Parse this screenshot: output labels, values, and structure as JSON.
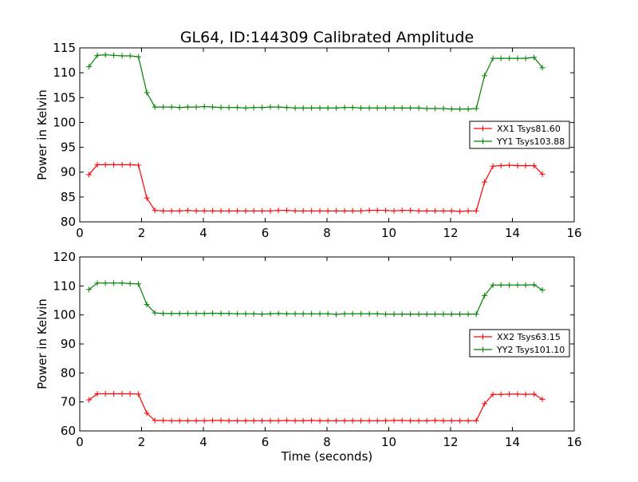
{
  "colors": {
    "xx": "#ff0000",
    "yy": "#008000",
    "frame": "#000000",
    "background": "#ffffff"
  },
  "chart_data": [
    {
      "type": "line",
      "title": "GL64, ID:144309 Calibrated Amplitude",
      "xlabel": "",
      "ylabel": "Power in Kelvin",
      "xlim": [
        0,
        16
      ],
      "ylim": [
        80,
        115
      ],
      "xticks": [
        0,
        2,
        4,
        6,
        8,
        10,
        12,
        14,
        16
      ],
      "yticks": [
        80,
        85,
        90,
        95,
        100,
        105,
        110,
        115
      ],
      "legend_position": "right",
      "x": [
        0.3,
        0.57,
        0.83,
        1.1,
        1.37,
        1.63,
        1.9,
        2.17,
        2.43,
        2.7,
        2.97,
        3.23,
        3.5,
        3.77,
        4.03,
        4.3,
        4.57,
        4.83,
        5.1,
        5.37,
        5.63,
        5.9,
        6.17,
        6.43,
        6.7,
        6.97,
        7.23,
        7.5,
        7.77,
        8.03,
        8.3,
        8.57,
        8.83,
        9.1,
        9.37,
        9.63,
        9.9,
        10.17,
        10.43,
        10.7,
        10.97,
        11.23,
        11.5,
        11.77,
        12.03,
        12.3,
        12.57,
        12.83,
        13.1,
        13.37,
        13.63,
        13.9,
        14.17,
        14.43,
        14.7,
        14.97
      ],
      "series": [
        {
          "name": "XX1 Tsys81.60",
          "color_key": "xx",
          "values": [
            89.5,
            91.5,
            91.5,
            91.5,
            91.5,
            91.5,
            91.4,
            84.8,
            82.3,
            82.2,
            82.2,
            82.2,
            82.3,
            82.2,
            82.2,
            82.2,
            82.2,
            82.2,
            82.2,
            82.2,
            82.2,
            82.2,
            82.2,
            82.3,
            82.3,
            82.2,
            82.2,
            82.2,
            82.2,
            82.2,
            82.2,
            82.2,
            82.2,
            82.2,
            82.3,
            82.3,
            82.3,
            82.2,
            82.3,
            82.3,
            82.2,
            82.2,
            82.2,
            82.2,
            82.2,
            82.1,
            82.2,
            82.2,
            88.0,
            91.2,
            91.3,
            91.4,
            91.3,
            91.3,
            91.3,
            89.6
          ]
        },
        {
          "name": "YY1 Tsys103.88",
          "color_key": "yy",
          "values": [
            111.2,
            113.5,
            113.6,
            113.5,
            113.4,
            113.4,
            113.2,
            106.0,
            103.1,
            103.1,
            103.1,
            103.0,
            103.1,
            103.1,
            103.2,
            103.1,
            103.0,
            103.0,
            103.0,
            102.9,
            103.0,
            103.0,
            103.1,
            103.1,
            103.0,
            102.9,
            102.9,
            102.9,
            102.9,
            102.9,
            102.9,
            103.0,
            103.0,
            102.9,
            102.9,
            102.9,
            102.9,
            102.9,
            102.9,
            102.9,
            102.9,
            102.8,
            102.8,
            102.8,
            102.7,
            102.7,
            102.7,
            102.8,
            109.4,
            112.9,
            112.9,
            112.9,
            112.9,
            112.9,
            113.1,
            111.0
          ]
        }
      ]
    },
    {
      "type": "line",
      "title": "",
      "xlabel": "Time (seconds)",
      "ylabel": "Power in Kelvin",
      "xlim": [
        0,
        16
      ],
      "ylim": [
        60,
        120
      ],
      "xticks": [
        0,
        2,
        4,
        6,
        8,
        10,
        12,
        14,
        16
      ],
      "yticks": [
        60,
        70,
        80,
        90,
        100,
        110,
        120
      ],
      "legend_position": "right",
      "x": [
        0.3,
        0.57,
        0.83,
        1.1,
        1.37,
        1.63,
        1.9,
        2.17,
        2.43,
        2.7,
        2.97,
        3.23,
        3.5,
        3.77,
        4.03,
        4.3,
        4.57,
        4.83,
        5.1,
        5.37,
        5.63,
        5.9,
        6.17,
        6.43,
        6.7,
        6.97,
        7.23,
        7.5,
        7.77,
        8.03,
        8.3,
        8.57,
        8.83,
        9.1,
        9.37,
        9.63,
        9.9,
        10.17,
        10.43,
        10.7,
        10.97,
        11.23,
        11.5,
        11.77,
        12.03,
        12.3,
        12.57,
        12.83,
        13.1,
        13.37,
        13.63,
        13.9,
        14.17,
        14.43,
        14.7,
        14.97
      ],
      "series": [
        {
          "name": "XX2 Tsys63.15",
          "color_key": "xx",
          "values": [
            70.7,
            72.8,
            72.8,
            72.8,
            72.8,
            72.8,
            72.7,
            66.1,
            63.6,
            63.6,
            63.5,
            63.5,
            63.5,
            63.5,
            63.5,
            63.6,
            63.6,
            63.5,
            63.5,
            63.5,
            63.5,
            63.5,
            63.5,
            63.5,
            63.6,
            63.5,
            63.5,
            63.6,
            63.5,
            63.5,
            63.5,
            63.5,
            63.5,
            63.5,
            63.5,
            63.5,
            63.5,
            63.6,
            63.6,
            63.5,
            63.5,
            63.5,
            63.6,
            63.5,
            63.5,
            63.5,
            63.5,
            63.5,
            69.4,
            72.6,
            72.6,
            72.7,
            72.7,
            72.6,
            72.7,
            70.9
          ]
        },
        {
          "name": "YY2 Tsys101.10",
          "color_key": "yy",
          "values": [
            108.8,
            111.0,
            111.0,
            111.0,
            111.0,
            110.8,
            110.7,
            103.6,
            100.7,
            100.5,
            100.5,
            100.5,
            100.5,
            100.5,
            100.5,
            100.6,
            100.5,
            100.5,
            100.4,
            100.4,
            100.4,
            100.3,
            100.4,
            100.5,
            100.4,
            100.4,
            100.4,
            100.4,
            100.4,
            100.4,
            100.2,
            100.4,
            100.4,
            100.4,
            100.4,
            100.4,
            100.3,
            100.3,
            100.3,
            100.3,
            100.3,
            100.3,
            100.3,
            100.3,
            100.3,
            100.3,
            100.3,
            100.3,
            106.7,
            110.3,
            110.3,
            110.3,
            110.3,
            110.3,
            110.4,
            108.6
          ]
        }
      ]
    }
  ]
}
